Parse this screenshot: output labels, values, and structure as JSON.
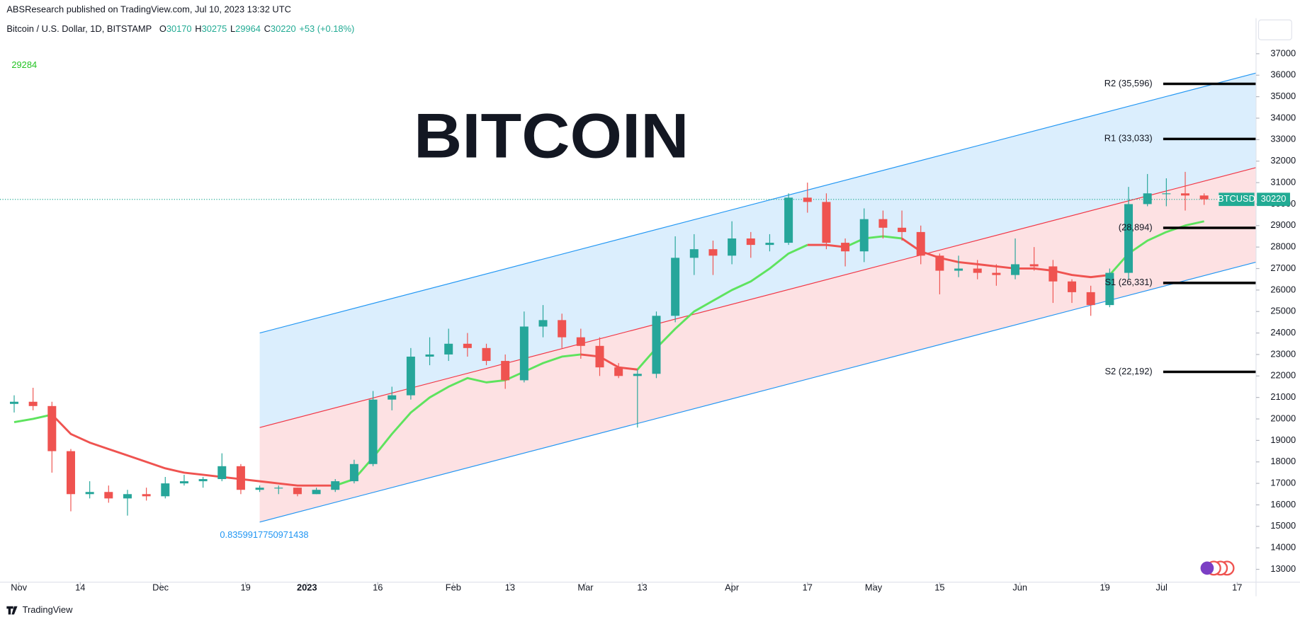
{
  "header": {
    "published": "ABSResearch published on TradingView.com, Jul 10, 2023 13:32 UTC",
    "symbol": "Bitcoin / U.S. Dollar, 1D, BITSTAMP",
    "ohlc": [
      {
        "label": "O",
        "value": "30170"
      },
      {
        "label": "H",
        "value": "30275"
      },
      {
        "label": "L",
        "value": "29964"
      },
      {
        "label": "C",
        "value": "30220"
      }
    ],
    "change": "+53 (+0.18%)"
  },
  "footer": {
    "brand": "TradingView"
  },
  "chart_data": {
    "type": "candlestick",
    "title": "BITCOIN",
    "x": [
      -1,
      3,
      7,
      11,
      15,
      19,
      23,
      27,
      31,
      35,
      39,
      43,
      47,
      51,
      55,
      59,
      63,
      67,
      71,
      75,
      79,
      83,
      87,
      91,
      95,
      99,
      103,
      107,
      111,
      115,
      119,
      123,
      127,
      131,
      135,
      139,
      143,
      147,
      151,
      155,
      159,
      163,
      167,
      171,
      175,
      179,
      183,
      187,
      191,
      195,
      199,
      203,
      207,
      211,
      215,
      219,
      223,
      227,
      231,
      235,
      239,
      243,
      247,
      251
    ],
    "open": [
      20700,
      20800,
      20600,
      18500,
      16500,
      16600,
      16300,
      16500,
      16400,
      17000,
      17100,
      17200,
      17800,
      16700,
      16800,
      16800,
      16500,
      16700,
      17100,
      17900,
      20900,
      21100,
      22900,
      23000,
      23500,
      23300,
      22700,
      21800,
      24300,
      24600,
      23800,
      23400,
      22400,
      22000,
      22100,
      24800,
      27500,
      27900,
      27600,
      28400,
      28100,
      28200,
      30300,
      30100,
      28200,
      27800,
      29300,
      28900,
      28700,
      27600,
      26900,
      27000,
      26800,
      26700,
      27200,
      27100,
      26400,
      25900,
      25300,
      26800,
      30000,
      30500,
      30500,
      30400
    ],
    "high": [
      21100,
      21450,
      20800,
      18600,
      17100,
      16900,
      16700,
      16800,
      17300,
      17400,
      17300,
      18400,
      17900,
      16900,
      16900,
      16800,
      16800,
      17200,
      18100,
      21300,
      21500,
      23300,
      23800,
      24200,
      24000,
      23500,
      23000,
      25000,
      25300,
      24900,
      24200,
      23800,
      22600,
      22300,
      25000,
      28500,
      28600,
      28300,
      29200,
      28700,
      28600,
      30500,
      31000,
      30500,
      28400,
      29800,
      29700,
      29700,
      29000,
      27700,
      27600,
      27400,
      27200,
      28400,
      28000,
      27400,
      26500,
      26200,
      27000,
      30800,
      31400,
      31200,
      31500,
      30500
    ],
    "low": [
      20300,
      20400,
      17500,
      15700,
      16300,
      16100,
      15500,
      16200,
      16300,
      16900,
      16800,
      17100,
      16500,
      16600,
      16500,
      16400,
      16500,
      16600,
      17000,
      17800,
      20400,
      20900,
      22500,
      22700,
      22900,
      22500,
      21400,
      21700,
      23800,
      23300,
      22800,
      22000,
      21900,
      19600,
      21900,
      24500,
      26700,
      26700,
      27200,
      27500,
      27800,
      28100,
      29600,
      27900,
      27100,
      27300,
      28400,
      28300,
      27200,
      25800,
      26600,
      26500,
      26200,
      26500,
      26900,
      25400,
      25400,
      24800,
      25200,
      26500,
      29900,
      29900,
      29700,
      29964
    ],
    "close": [
      20800,
      20600,
      18500,
      16500,
      16600,
      16300,
      16500,
      16400,
      17000,
      17100,
      17200,
      17800,
      16700,
      16800,
      16800,
      16500,
      16700,
      17100,
      17900,
      20900,
      21100,
      22900,
      23000,
      23500,
      23300,
      22700,
      21800,
      24300,
      24600,
      23800,
      23400,
      22400,
      22000,
      22100,
      24800,
      27500,
      27900,
      27600,
      28400,
      28100,
      28200,
      30300,
      30100,
      28200,
      27800,
      29300,
      28900,
      28700,
      27600,
      26900,
      27000,
      26800,
      26700,
      27200,
      27100,
      26400,
      25900,
      25300,
      26800,
      30000,
      30500,
      30500,
      30400,
      30220
    ],
    "up_color": "#26a69a",
    "down_color": "#ef5350",
    "ma": [
      {
        "color": "#5ee35e",
        "values": [
          19850,
          20000,
          20200,
          null,
          null,
          null,
          null,
          null,
          null,
          null,
          null,
          null,
          null,
          null,
          null,
          null,
          null,
          16900,
          17200,
          18200,
          19300,
          20300,
          21000,
          21500,
          21900,
          21700,
          21800,
          22200,
          22600,
          22900,
          23000,
          null,
          null,
          22300,
          23300,
          24200,
          25000,
          25500,
          26000,
          26400,
          27000,
          27700,
          28100,
          null,
          28000,
          28400,
          28500,
          28400,
          null,
          null,
          null,
          null,
          null,
          null,
          null,
          null,
          null,
          null,
          26700,
          27700,
          28300,
          28700,
          29000,
          29200
        ]
      },
      {
        "color": "#ef5350",
        "values": [
          null,
          null,
          20200,
          19300,
          18900,
          18600,
          18300,
          18000,
          17700,
          17500,
          17400,
          17300,
          17200,
          17100,
          17000,
          16900,
          16900,
          16900,
          null,
          null,
          null,
          null,
          null,
          null,
          null,
          null,
          null,
          null,
          null,
          null,
          23000,
          22900,
          22400,
          22300,
          null,
          null,
          null,
          null,
          null,
          null,
          null,
          null,
          28100,
          28100,
          28000,
          null,
          null,
          28400,
          27800,
          27500,
          27300,
          27200,
          27100,
          27000,
          27000,
          26900,
          26700,
          26600,
          26700,
          null,
          null,
          null,
          null,
          null
        ]
      }
    ],
    "ma_label": 29284,
    "channel": {
      "x": [
        51,
        262
      ],
      "upper": [
        24000,
        36100
      ],
      "middle": [
        19600,
        31700
      ],
      "lower": [
        15200,
        27300
      ],
      "label": "0.8359917750971438"
    },
    "levels": [
      {
        "label": "R2 (35,596)",
        "value": 35596
      },
      {
        "label": "R1 (33,033)",
        "value": 33033
      },
      {
        "label": "(28,894)",
        "value": 28894
      },
      {
        "label": "S1 (26,331)",
        "value": 26331
      },
      {
        "label": "S2 (22,192)",
        "value": 22192
      }
    ],
    "last": {
      "symbol": "BTCUSD",
      "value": 30220
    },
    "xlim": [
      -4,
      262
    ],
    "xticks": [
      {
        "value": 0,
        "label": "Nov"
      },
      {
        "value": 13,
        "label": "14"
      },
      {
        "value": 30,
        "label": "Dec"
      },
      {
        "value": 48,
        "label": "19"
      },
      {
        "value": 61,
        "label": "2023"
      },
      {
        "value": 76,
        "label": "16"
      },
      {
        "value": 92,
        "label": "Feb"
      },
      {
        "value": 104,
        "label": "13"
      },
      {
        "value": 120,
        "label": "Mar"
      },
      {
        "value": 132,
        "label": "13"
      },
      {
        "value": 151,
        "label": "Apr"
      },
      {
        "value": 167,
        "label": "17"
      },
      {
        "value": 181,
        "label": "May"
      },
      {
        "value": 195,
        "label": "15"
      },
      {
        "value": 212,
        "label": "Jun"
      },
      {
        "value": 230,
        "label": "19"
      },
      {
        "value": 242,
        "label": "Jul"
      },
      {
        "value": 258,
        "label": "17"
      }
    ],
    "ylim": [
      12400,
      38650
    ],
    "yticks": [
      13000,
      14000,
      15000,
      16000,
      17000,
      18000,
      19000,
      20000,
      21000,
      22000,
      23000,
      24000,
      25000,
      26000,
      27000,
      28000,
      29000,
      30000,
      31000,
      32000,
      33000,
      34000,
      35000,
      36000,
      37000
    ]
  }
}
